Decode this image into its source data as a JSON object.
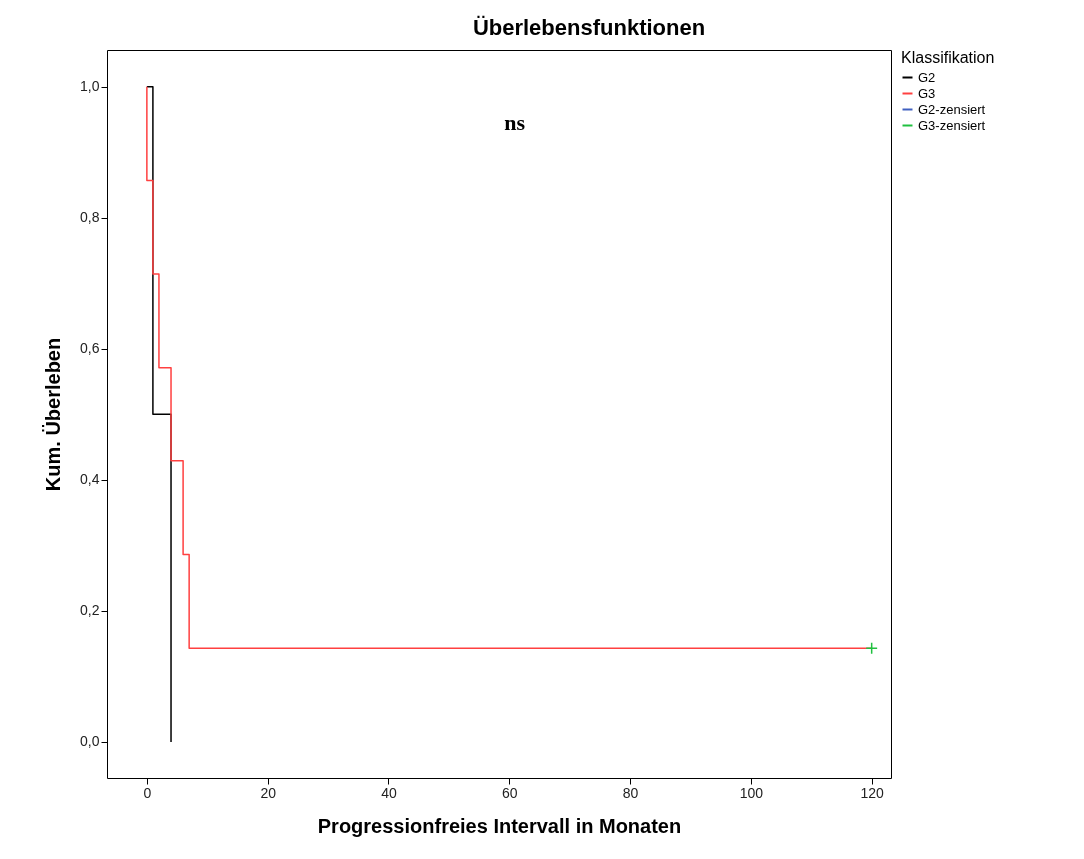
{
  "chart_data": {
    "type": "step",
    "title": "Überlebensfunktionen",
    "xlabel": "Progressionfreies Intervall in Monaten",
    "ylabel": "Kum. Überleben",
    "legend_title": "Klassifikation",
    "legend": "top right",
    "grid": false,
    "xlim": [
      -6.6,
      123.2
    ],
    "xticks": [
      0,
      20,
      40,
      60,
      80,
      100,
      120
    ],
    "ylim": [
      -0.055,
      1.056
    ],
    "yticks": [
      {
        "value": 0,
        "label": "0,0"
      },
      {
        "value": 0.2,
        "label": "0,2"
      },
      {
        "value": 0.4,
        "label": "0,4"
      },
      {
        "value": 0.6,
        "label": "0,6"
      },
      {
        "value": 0.8,
        "label": "0,8"
      },
      {
        "value": 1,
        "label": "1,0"
      }
    ],
    "annotations": [
      "ns"
    ],
    "series": [
      {
        "name": "G2",
        "color": "#000000",
        "x": [
          0,
          1,
          4
        ],
        "values": [
          1,
          0.5,
          0
        ]
      },
      {
        "name": "G3",
        "color": "#ff4040",
        "x": [
          0,
          0,
          1,
          2,
          4,
          6,
          7,
          120
        ],
        "values": [
          1,
          0.857,
          0.714,
          0.571,
          0.429,
          0.286,
          0.143,
          0.143
        ]
      },
      {
        "name": "G2-zensiert",
        "type": "scatter",
        "marker": "cross",
        "color": "#4060c0"
      },
      {
        "name": "G3-zensiert",
        "type": "scatter",
        "marker": "cross",
        "color": "#20c040",
        "x": [
          120
        ],
        "values": [
          0.143
        ]
      }
    ]
  }
}
